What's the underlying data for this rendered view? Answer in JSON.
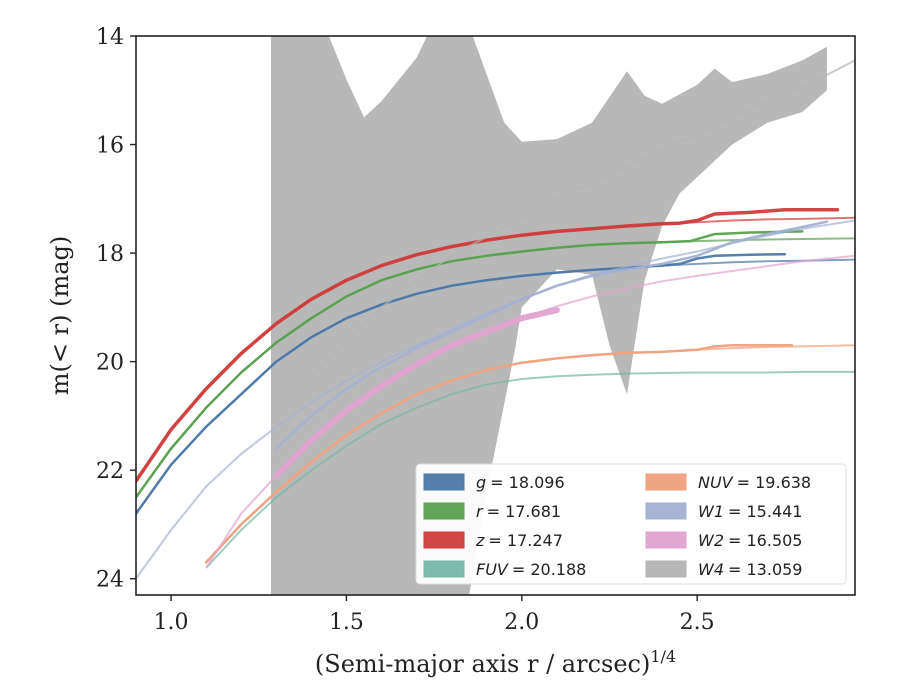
{
  "chart_data": {
    "type": "line",
    "xlabel": "(Semi-major axis r / arcsec)",
    "xlabel_sup": "1/4",
    "ylabel": "m(< r) (mag)",
    "xlim": [
      0.9,
      2.95
    ],
    "ylim": [
      24.3,
      14.0
    ],
    "y_inverted": true,
    "x_ticks": [
      1.0,
      1.5,
      2.0,
      2.5
    ],
    "x_tick_labels": [
      "1.0",
      "1.5",
      "2.0",
      "2.5"
    ],
    "y_ticks": [
      14,
      16,
      18,
      20,
      22,
      24
    ],
    "y_tick_labels": [
      "14",
      "16",
      "18",
      "20",
      "22",
      "24"
    ],
    "grid": false,
    "legend_position": "lower-right",
    "series": [
      {
        "name": "g = 18.096",
        "label_var": "g",
        "label_val": "= 18.096",
        "color": "#4c78a8",
        "x": [
          0.9,
          1.0,
          1.1,
          1.2,
          1.3,
          1.4,
          1.5,
          1.6,
          1.7,
          1.8,
          1.9,
          2.0,
          2.1,
          2.2,
          2.3,
          2.4,
          2.5,
          2.6,
          2.7,
          2.8,
          2.95
        ],
        "y": [
          22.8,
          21.9,
          21.2,
          20.6,
          20.0,
          19.55,
          19.2,
          18.95,
          18.75,
          18.6,
          18.5,
          18.42,
          18.36,
          18.31,
          18.27,
          18.23,
          18.2,
          18.17,
          18.15,
          18.14,
          18.12
        ],
        "x_solid": [
          0.9,
          1.0,
          1.1,
          1.2,
          1.3,
          1.4,
          1.5,
          1.6,
          1.7,
          1.8,
          1.9,
          2.0,
          2.1,
          2.2,
          2.3,
          2.4,
          2.45,
          2.5,
          2.55,
          2.65,
          2.75
        ],
        "y_solid": [
          22.8,
          21.9,
          21.2,
          20.6,
          20.0,
          19.55,
          19.2,
          18.95,
          18.75,
          18.6,
          18.5,
          18.42,
          18.36,
          18.31,
          18.27,
          18.23,
          18.2,
          18.1,
          18.05,
          18.03,
          18.02
        ]
      },
      {
        "name": "r = 17.681",
        "label_var": "r",
        "label_val": "= 17.681",
        "color": "#59a14f",
        "x": [
          0.9,
          1.0,
          1.1,
          1.2,
          1.3,
          1.4,
          1.5,
          1.6,
          1.7,
          1.8,
          1.9,
          2.0,
          2.1,
          2.2,
          2.3,
          2.4,
          2.5,
          2.6,
          2.7,
          2.8,
          2.95
        ],
        "y": [
          22.5,
          21.6,
          20.85,
          20.2,
          19.65,
          19.2,
          18.8,
          18.5,
          18.3,
          18.15,
          18.05,
          17.97,
          17.9,
          17.85,
          17.82,
          17.8,
          17.78,
          17.76,
          17.75,
          17.74,
          17.73
        ],
        "x_solid": [
          0.9,
          1.0,
          1.1,
          1.2,
          1.3,
          1.4,
          1.5,
          1.6,
          1.7,
          1.8,
          1.9,
          2.0,
          2.1,
          2.2,
          2.3,
          2.4,
          2.48,
          2.55,
          2.65,
          2.8
        ],
        "y_solid": [
          22.5,
          21.6,
          20.85,
          20.2,
          19.65,
          19.2,
          18.8,
          18.5,
          18.3,
          18.15,
          18.05,
          17.97,
          17.9,
          17.85,
          17.82,
          17.8,
          17.78,
          17.65,
          17.62,
          17.6
        ]
      },
      {
        "name": "z = 17.247",
        "label_var": "z",
        "label_val": "= 17.247",
        "color": "#d03c3c",
        "x": [
          0.9,
          1.0,
          1.1,
          1.2,
          1.3,
          1.4,
          1.5,
          1.6,
          1.7,
          1.8,
          1.9,
          2.0,
          2.1,
          2.2,
          2.3,
          2.4,
          2.5,
          2.6,
          2.7,
          2.8,
          2.95
        ],
        "y": [
          22.2,
          21.25,
          20.5,
          19.85,
          19.3,
          18.85,
          18.5,
          18.23,
          18.03,
          17.88,
          17.76,
          17.67,
          17.6,
          17.55,
          17.5,
          17.46,
          17.43,
          17.4,
          17.38,
          17.37,
          17.35
        ],
        "x_solid": [
          0.9,
          1.0,
          1.1,
          1.2,
          1.3,
          1.4,
          1.5,
          1.6,
          1.7,
          1.8,
          1.9,
          2.0,
          2.1,
          2.2,
          2.3,
          2.4,
          2.45,
          2.5,
          2.55,
          2.65,
          2.75,
          2.9
        ],
        "y_solid": [
          22.2,
          21.25,
          20.5,
          19.85,
          19.3,
          18.85,
          18.5,
          18.23,
          18.03,
          17.88,
          17.76,
          17.67,
          17.6,
          17.55,
          17.5,
          17.46,
          17.45,
          17.4,
          17.28,
          17.25,
          17.2,
          17.2
        ]
      },
      {
        "name": "FUV = 20.188",
        "label_var": "FUV",
        "label_val": "= 20.188",
        "color": "#76b7a8",
        "x": [
          1.1,
          1.2,
          1.3,
          1.4,
          1.5,
          1.6,
          1.7,
          1.8,
          1.9,
          2.0,
          2.1,
          2.2,
          2.3,
          2.4,
          2.5,
          2.6,
          2.7,
          2.8,
          2.95
        ],
        "y": [
          23.8,
          23.1,
          22.5,
          22.0,
          21.55,
          21.15,
          20.85,
          20.6,
          20.42,
          20.32,
          20.27,
          20.24,
          20.22,
          20.21,
          20.2,
          20.2,
          20.2,
          20.19,
          20.19
        ]
      },
      {
        "name": "NUV = 19.638",
        "label_var": "NUV",
        "label_val": "= 19.638",
        "color": "#f0a07e",
        "x": [
          1.1,
          1.2,
          1.3,
          1.4,
          1.5,
          1.6,
          1.7,
          1.8,
          1.9,
          2.0,
          2.1,
          2.2,
          2.3,
          2.4,
          2.5,
          2.6,
          2.7,
          2.8,
          2.95
        ],
        "y": [
          23.7,
          23.0,
          22.4,
          21.85,
          21.35,
          20.95,
          20.6,
          20.35,
          20.15,
          20.02,
          19.94,
          19.88,
          19.84,
          19.82,
          19.78,
          19.75,
          19.73,
          19.72,
          19.7
        ],
        "x_solid": [
          1.1,
          1.2,
          1.3,
          1.4,
          1.5,
          1.6,
          1.7,
          1.8,
          1.9,
          2.0,
          2.1,
          2.2,
          2.3,
          2.4,
          2.5,
          2.55,
          2.6,
          2.7,
          2.77
        ],
        "y_solid": [
          23.7,
          23.0,
          22.4,
          21.85,
          21.35,
          20.95,
          20.6,
          20.35,
          20.15,
          20.02,
          19.94,
          19.88,
          19.84,
          19.82,
          19.78,
          19.72,
          19.7,
          19.7,
          19.7
        ]
      },
      {
        "name": "W1 = 15.441",
        "label_var": "W1",
        "label_val": "= 15.441",
        "color": "#a3b0d3",
        "x": [
          0.9,
          1.0,
          1.1,
          1.2,
          1.3,
          1.4,
          1.5,
          1.6,
          1.7,
          1.8,
          1.9,
          2.0,
          2.1,
          2.2,
          2.3,
          2.4,
          2.5,
          2.6,
          2.7,
          2.8,
          2.95
        ],
        "y": [
          24.0,
          23.1,
          22.3,
          21.7,
          21.2,
          20.75,
          20.35,
          20.0,
          19.7,
          19.4,
          19.1,
          18.85,
          18.6,
          18.4,
          18.25,
          18.1,
          17.97,
          17.82,
          17.68,
          17.55,
          17.4
        ],
        "x_solid": [
          1.3,
          1.4,
          1.5,
          1.6,
          1.7,
          1.8,
          1.9,
          2.0,
          2.1,
          2.2,
          2.3,
          2.4,
          2.5,
          2.6,
          2.7,
          2.8,
          2.87
        ],
        "y_solid": [
          21.6,
          21.0,
          20.5,
          20.1,
          19.75,
          19.45,
          19.15,
          18.85,
          18.6,
          18.42,
          18.3,
          18.2,
          18.05,
          17.8,
          17.65,
          17.52,
          17.42
        ]
      },
      {
        "name": "W2 = 16.505",
        "label_var": "W2",
        "label_val": "= 16.505",
        "color": "#e2a3cf",
        "x": [
          1.1,
          1.2,
          1.3,
          1.4,
          1.5,
          1.6,
          1.7,
          1.8,
          1.9,
          2.0,
          2.1,
          2.2,
          2.3,
          2.4,
          2.5,
          2.6,
          2.7,
          2.8,
          2.95
        ],
        "y": [
          23.8,
          22.8,
          22.1,
          21.45,
          20.9,
          20.45,
          20.05,
          19.7,
          19.45,
          19.2,
          18.98,
          18.8,
          18.65,
          18.52,
          18.42,
          18.33,
          18.24,
          18.15,
          18.05
        ],
        "x_solid": [
          1.3,
          1.4,
          1.5,
          1.6,
          1.7,
          1.8,
          1.9,
          2.0,
          2.1
        ],
        "y_solid": [
          22.1,
          21.45,
          20.9,
          20.45,
          20.05,
          19.7,
          19.45,
          19.2,
          19.05
        ]
      },
      {
        "name": "W4 = 13.059",
        "label_var": "W4",
        "label_val": "= 13.059",
        "color": "#b4b4b4",
        "x": [
          1.3,
          1.4,
          1.5,
          1.6,
          1.7,
          1.8,
          1.9,
          2.0,
          2.1,
          2.2,
          2.3,
          2.4,
          2.5,
          2.6,
          2.7,
          2.8,
          2.95
        ],
        "y": [
          21.0,
          20.3,
          19.6,
          19.0,
          18.5,
          18.05,
          17.7,
          17.35,
          17.0,
          16.7,
          16.4,
          16.1,
          15.8,
          15.5,
          15.2,
          14.95,
          14.45
        ],
        "band_upper_x": [
          1.285,
          1.29,
          1.45,
          1.5,
          1.55,
          1.6,
          1.7,
          1.73,
          1.79,
          1.81,
          1.86,
          1.95,
          2.0,
          2.1,
          2.2,
          2.3,
          2.35,
          2.4,
          2.5,
          2.55,
          2.6,
          2.7,
          2.8,
          2.87
        ],
        "band_upper_y": [
          14.0,
          14.0,
          14.0,
          14.8,
          15.5,
          15.2,
          14.4,
          14.0,
          14.0,
          14.0,
          14.0,
          15.6,
          15.95,
          15.9,
          15.6,
          14.65,
          15.1,
          15.25,
          14.9,
          14.6,
          14.85,
          14.7,
          14.45,
          14.2
        ],
        "band_lower_x": [
          2.87,
          2.87,
          2.8,
          2.7,
          2.6,
          2.55,
          2.5,
          2.45,
          2.4,
          2.35,
          2.3,
          2.25,
          2.2,
          2.1,
          2.0,
          1.98,
          1.9,
          1.85,
          1.8,
          1.75,
          1.7,
          1.6,
          1.5,
          1.4,
          1.3,
          1.285
        ],
        "band_lower_y": [
          14.2,
          15.0,
          15.4,
          15.6,
          16.0,
          16.3,
          16.6,
          16.9,
          17.5,
          18.5,
          20.6,
          19.7,
          18.4,
          18.3,
          19.0,
          19.8,
          22.4,
          24.3,
          24.3,
          24.3,
          24.3,
          24.3,
          24.3,
          24.3,
          24.3,
          24.3
        ]
      }
    ]
  }
}
